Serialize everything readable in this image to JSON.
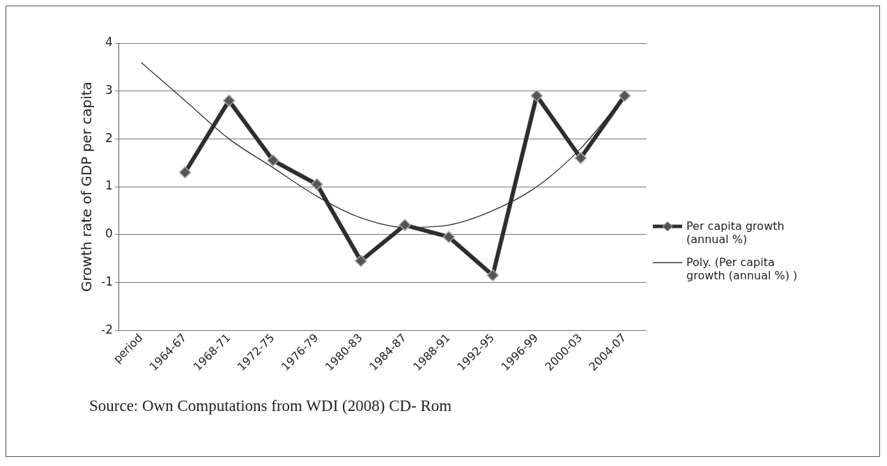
{
  "chart_data": {
    "type": "line",
    "ylabel": "Growth rate of GDP per capita",
    "categories": [
      "period",
      "1964-67",
      "1968-71",
      "1972-75",
      "1976-79",
      "1980-83",
      "1984-87",
      "1988-91",
      "1992-95",
      "1996-99",
      "2000-03",
      "2004-07"
    ],
    "series": [
      {
        "name": "Per capita growth (annual %)",
        "color": "#2e2e2e",
        "marker": "diamond",
        "values": [
          null,
          1.3,
          2.8,
          1.55,
          1.05,
          -0.55,
          0.2,
          -0.05,
          -0.85,
          2.9,
          1.6,
          2.9
        ]
      },
      {
        "name": "Poly. (Per capita growth (annual %) )",
        "color": "#333333",
        "marker": "none",
        "values": [
          3.6,
          2.8,
          2.0,
          1.4,
          0.8,
          0.35,
          0.15,
          0.2,
          0.5,
          1.0,
          1.8,
          2.9
        ]
      }
    ],
    "ylim": [
      -2,
      4
    ],
    "yticks": [
      -2,
      -1,
      0,
      1,
      2,
      3,
      4
    ],
    "grid": "y",
    "legend": "right",
    "annotations": [
      "Source:  Own Computations from WDI (2008) CD- Rom"
    ]
  }
}
